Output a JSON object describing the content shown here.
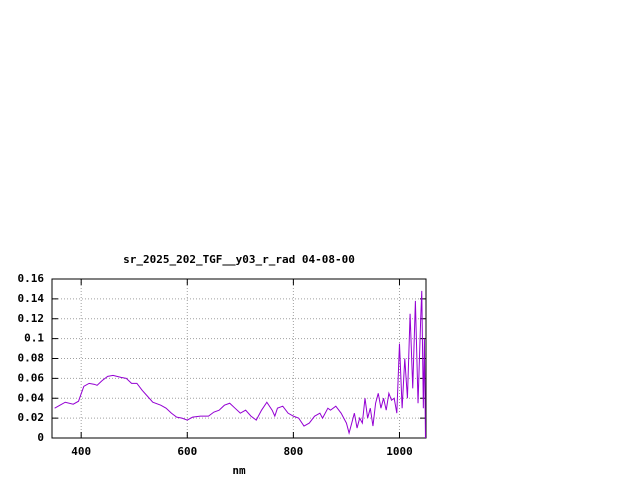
{
  "chart_data": {
    "type": "line",
    "title": "sr_2025_202_TGF__y03_r_rad 04-08-00",
    "x_label": "nm",
    "xlim": [
      345,
      1050
    ],
    "xticks": [
      400,
      600,
      800,
      1000
    ],
    "ylim": [
      0,
      0.16
    ],
    "yticks": [
      0,
      0.02,
      0.04,
      0.06,
      0.08,
      0.1,
      0.12,
      0.14,
      0.16
    ],
    "grid": true,
    "series": [
      {
        "color": "#9400d3",
        "x": [
          350,
          360,
          370,
          385,
          395,
          405,
          415,
          425,
          430,
          440,
          450,
          460,
          475,
          485,
          495,
          505,
          515,
          525,
          535,
          550,
          560,
          570,
          580,
          590,
          600,
          610,
          625,
          640,
          650,
          660,
          670,
          680,
          690,
          700,
          710,
          720,
          730,
          740,
          750,
          760,
          765,
          770,
          780,
          790,
          800,
          810,
          820,
          830,
          840,
          850,
          855,
          865,
          870,
          880,
          890,
          895,
          900,
          905,
          910,
          915,
          920,
          925,
          930,
          935,
          940,
          945,
          950,
          955,
          960,
          965,
          970,
          975,
          980,
          985,
          990,
          995,
          1000,
          1005,
          1010,
          1015,
          1020,
          1025,
          1030,
          1035,
          1040,
          1042,
          1045,
          1047,
          1049
        ],
        "values": [
          0.03,
          0.033,
          0.036,
          0.034,
          0.037,
          0.052,
          0.055,
          0.054,
          0.053,
          0.058,
          0.062,
          0.063,
          0.061,
          0.06,
          0.055,
          0.055,
          0.048,
          0.042,
          0.036,
          0.033,
          0.03,
          0.025,
          0.021,
          0.02,
          0.018,
          0.021,
          0.022,
          0.022,
          0.026,
          0.028,
          0.033,
          0.035,
          0.03,
          0.025,
          0.028,
          0.022,
          0.018,
          0.028,
          0.036,
          0.028,
          0.022,
          0.03,
          0.032,
          0.025,
          0.022,
          0.02,
          0.012,
          0.015,
          0.022,
          0.025,
          0.02,
          0.03,
          0.028,
          0.032,
          0.025,
          0.02,
          0.015,
          0.005,
          0.015,
          0.025,
          0.01,
          0.02,
          0.015,
          0.04,
          0.02,
          0.03,
          0.012,
          0.035,
          0.045,
          0.03,
          0.04,
          0.028,
          0.045,
          0.038,
          0.04,
          0.025,
          0.095,
          0.03,
          0.08,
          0.04,
          0.125,
          0.05,
          0.138,
          0.035,
          0.12,
          0.148,
          0.03,
          0.1,
          0
        ]
      }
    ]
  }
}
